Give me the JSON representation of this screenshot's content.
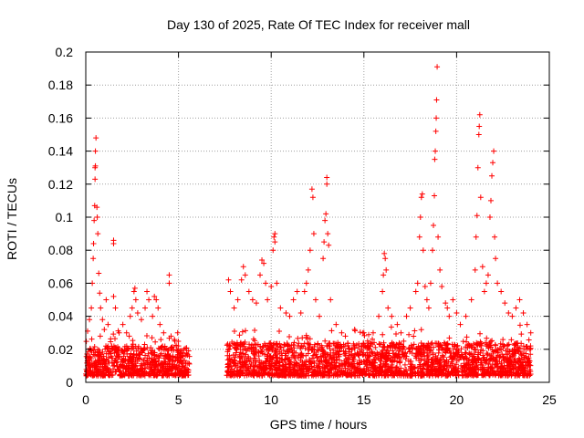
{
  "chart_data": {
    "type": "scatter",
    "title": "Day 130 of 2025, Rate Of TEC Index for receiver mall",
    "xlabel": "GPS time / hours",
    "ylabel": "ROTI / TECUs",
    "xlim": [
      0,
      25
    ],
    "ylim": [
      0,
      0.2
    ],
    "x_ticks": [
      0,
      5,
      10,
      15,
      20,
      25
    ],
    "y_ticks": [
      0,
      0.02,
      0.04,
      0.06,
      0.08,
      0.1,
      0.12,
      0.14,
      0.16,
      0.18,
      0.2
    ],
    "x_tick_labels": [
      "0",
      "5",
      "10",
      "15",
      "20",
      "25"
    ],
    "y_tick_labels": [
      "0",
      "0.02",
      "0.04",
      "0.06",
      "0.08",
      "0.1",
      "0.12",
      "0.14",
      "0.16",
      "0.18",
      "0.2"
    ],
    "grid": true,
    "marker": "+",
    "series_color": "#ff0000",
    "dense_background": [
      {
        "x_start": 0.0,
        "x_end": 5.6,
        "y_low": 0.004,
        "y_high": 0.022
      },
      {
        "x_start": 7.6,
        "x_end": 24.0,
        "y_low": 0.004,
        "y_high": 0.024
      }
    ],
    "series": [
      {
        "name": "ROTI",
        "points": [
          [
            0.1,
            0.031
          ],
          [
            0.2,
            0.038
          ],
          [
            0.3,
            0.045
          ],
          [
            0.35,
            0.06
          ],
          [
            0.4,
            0.075
          ],
          [
            0.42,
            0.084
          ],
          [
            0.45,
            0.098
          ],
          [
            0.48,
            0.107
          ],
          [
            0.5,
            0.123
          ],
          [
            0.5,
            0.13
          ],
          [
            0.52,
            0.131
          ],
          [
            0.52,
            0.14
          ],
          [
            0.55,
            0.148
          ],
          [
            0.6,
            0.106
          ],
          [
            0.62,
            0.1
          ],
          [
            0.65,
            0.09
          ],
          [
            0.7,
            0.066
          ],
          [
            0.75,
            0.054
          ],
          [
            0.8,
            0.045
          ],
          [
            0.9,
            0.038
          ],
          [
            1.0,
            0.032
          ],
          [
            1.1,
            0.05
          ],
          [
            1.2,
            0.035
          ],
          [
            1.5,
            0.086
          ],
          [
            1.5,
            0.084
          ],
          [
            1.5,
            0.052
          ],
          [
            1.6,
            0.045
          ],
          [
            1.8,
            0.03
          ],
          [
            2.0,
            0.035
          ],
          [
            2.2,
            0.03
          ],
          [
            2.4,
            0.04
          ],
          [
            2.5,
            0.045
          ],
          [
            2.6,
            0.055
          ],
          [
            2.65,
            0.057
          ],
          [
            2.7,
            0.05
          ],
          [
            2.8,
            0.042
          ],
          [
            3.0,
            0.038
          ],
          [
            3.2,
            0.045
          ],
          [
            3.3,
            0.055
          ],
          [
            3.4,
            0.05
          ],
          [
            3.6,
            0.04
          ],
          [
            3.7,
            0.052
          ],
          [
            3.8,
            0.05
          ],
          [
            3.9,
            0.045
          ],
          [
            4.0,
            0.035
          ],
          [
            4.2,
            0.03
          ],
          [
            4.5,
            0.065
          ],
          [
            4.5,
            0.06
          ],
          [
            4.6,
            0.028
          ],
          [
            4.8,
            0.025
          ],
          [
            5.0,
            0.022
          ],
          [
            5.3,
            0.02
          ],
          [
            7.7,
            0.062
          ],
          [
            7.8,
            0.055
          ],
          [
            8.0,
            0.045
          ],
          [
            8.2,
            0.05
          ],
          [
            8.4,
            0.062
          ],
          [
            8.5,
            0.07
          ],
          [
            8.6,
            0.065
          ],
          [
            8.8,
            0.055
          ],
          [
            9.0,
            0.05
          ],
          [
            9.2,
            0.048
          ],
          [
            9.4,
            0.065
          ],
          [
            9.5,
            0.074
          ],
          [
            9.6,
            0.072
          ],
          [
            9.7,
            0.06
          ],
          [
            9.8,
            0.05
          ],
          [
            10.0,
            0.058
          ],
          [
            10.1,
            0.08
          ],
          [
            10.15,
            0.088
          ],
          [
            10.2,
            0.09
          ],
          [
            10.2,
            0.085
          ],
          [
            10.3,
            0.06
          ],
          [
            10.5,
            0.045
          ],
          [
            10.8,
            0.042
          ],
          [
            11.0,
            0.04
          ],
          [
            11.2,
            0.05
          ],
          [
            11.4,
            0.055
          ],
          [
            11.6,
            0.042
          ],
          [
            11.8,
            0.055
          ],
          [
            11.9,
            0.06
          ],
          [
            12.0,
            0.068
          ],
          [
            12.1,
            0.08
          ],
          [
            12.2,
            0.117
          ],
          [
            12.25,
            0.112
          ],
          [
            12.3,
            0.09
          ],
          [
            12.4,
            0.05
          ],
          [
            12.6,
            0.04
          ],
          [
            12.8,
            0.075
          ],
          [
            12.85,
            0.085
          ],
          [
            12.9,
            0.098
          ],
          [
            12.95,
            0.102
          ],
          [
            13.0,
            0.124
          ],
          [
            13.0,
            0.12
          ],
          [
            13.05,
            0.09
          ],
          [
            13.1,
            0.083
          ],
          [
            13.2,
            0.05
          ],
          [
            13.5,
            0.035
          ],
          [
            13.8,
            0.03
          ],
          [
            14.0,
            0.028
          ],
          [
            14.5,
            0.032
          ],
          [
            15.0,
            0.03
          ],
          [
            15.2,
            0.025
          ],
          [
            15.5,
            0.03
          ],
          [
            15.8,
            0.04
          ],
          [
            16.0,
            0.055
          ],
          [
            16.05,
            0.065
          ],
          [
            16.1,
            0.078
          ],
          [
            16.15,
            0.075
          ],
          [
            16.2,
            0.068
          ],
          [
            16.3,
            0.045
          ],
          [
            16.5,
            0.04
          ],
          [
            16.8,
            0.035
          ],
          [
            17.0,
            0.03
          ],
          [
            17.3,
            0.04
          ],
          [
            17.5,
            0.045
          ],
          [
            17.8,
            0.055
          ],
          [
            17.9,
            0.06
          ],
          [
            18.0,
            0.088
          ],
          [
            18.05,
            0.1
          ],
          [
            18.1,
            0.112
          ],
          [
            18.15,
            0.114
          ],
          [
            18.2,
            0.08
          ],
          [
            18.3,
            0.058
          ],
          [
            18.4,
            0.05
          ],
          [
            18.5,
            0.045
          ],
          [
            18.6,
            0.06
          ],
          [
            18.7,
            0.08
          ],
          [
            18.75,
            0.095
          ],
          [
            18.8,
            0.113
          ],
          [
            18.82,
            0.135
          ],
          [
            18.85,
            0.14
          ],
          [
            18.88,
            0.152
          ],
          [
            18.9,
            0.16
          ],
          [
            18.92,
            0.171
          ],
          [
            18.95,
            0.191
          ],
          [
            19.0,
            0.088
          ],
          [
            19.1,
            0.068
          ],
          [
            19.2,
            0.058
          ],
          [
            19.4,
            0.048
          ],
          [
            19.5,
            0.045
          ],
          [
            19.6,
            0.04
          ],
          [
            19.8,
            0.05
          ],
          [
            20.0,
            0.042
          ],
          [
            20.2,
            0.035
          ],
          [
            20.5,
            0.04
          ],
          [
            20.8,
            0.05
          ],
          [
            21.0,
            0.068
          ],
          [
            21.05,
            0.088
          ],
          [
            21.1,
            0.101
          ],
          [
            21.15,
            0.13
          ],
          [
            21.2,
            0.15
          ],
          [
            21.22,
            0.155
          ],
          [
            21.25,
            0.162
          ],
          [
            21.3,
            0.112
          ],
          [
            21.4,
            0.07
          ],
          [
            21.5,
            0.055
          ],
          [
            21.6,
            0.06
          ],
          [
            21.7,
            0.065
          ],
          [
            21.8,
            0.1
          ],
          [
            21.85,
            0.11
          ],
          [
            21.9,
            0.125
          ],
          [
            21.95,
            0.133
          ],
          [
            22.0,
            0.14
          ],
          [
            22.05,
            0.088
          ],
          [
            22.1,
            0.075
          ],
          [
            22.2,
            0.06
          ],
          [
            22.4,
            0.055
          ],
          [
            22.6,
            0.048
          ],
          [
            22.8,
            0.042
          ],
          [
            23.0,
            0.04
          ],
          [
            23.2,
            0.045
          ],
          [
            23.4,
            0.05
          ],
          [
            23.6,
            0.042
          ],
          [
            23.8,
            0.035
          ],
          [
            24.0,
            0.03
          ]
        ]
      }
    ]
  }
}
